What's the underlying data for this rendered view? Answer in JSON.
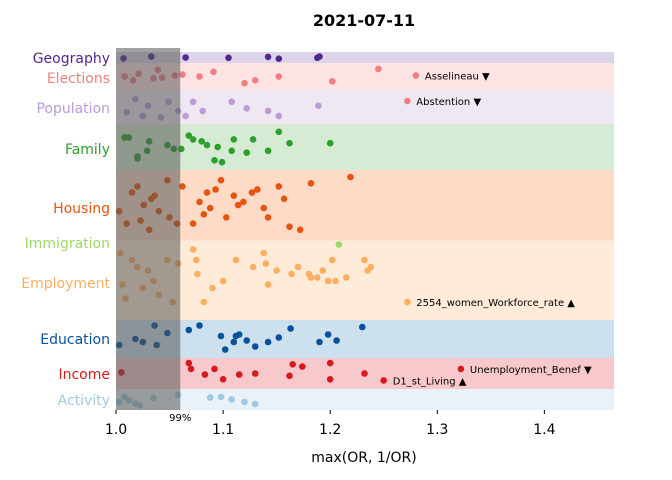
{
  "chart_data": {
    "type": "scatter",
    "title": "2021-07-11",
    "xlabel": "max(OR, 1/OR)",
    "xlim": [
      1.0,
      1.465
    ],
    "xticks": [
      "1.0",
      "1.1",
      "1.2",
      "1.3",
      "1.4"
    ],
    "xtick_values": [
      1.0,
      1.1,
      1.2,
      1.3,
      1.4
    ],
    "threshold": {
      "x": 1.06,
      "label": "99%"
    },
    "categories": [
      {
        "name": "Geography",
        "color": "#54278f",
        "band": "#dcd4e8",
        "pts": [
          [
            1.007,
            0.8
          ],
          [
            1.033,
            0.2
          ],
          [
            1.065,
            0.5
          ],
          [
            1.105,
            0.6
          ],
          [
            1.142,
            0.3
          ],
          [
            1.152,
            0.9
          ],
          [
            1.188,
            0.6
          ],
          [
            1.19,
            0.2
          ]
        ]
      },
      {
        "name": "Elections",
        "color": "#f08080",
        "band": "#fde3e3",
        "pts": [
          [
            1.008,
            0.5
          ],
          [
            1.016,
            0.7
          ],
          [
            1.021,
            0.35
          ],
          [
            1.035,
            0.6
          ],
          [
            1.039,
            0.15
          ],
          [
            1.043,
            0.55
          ],
          [
            1.055,
            0.45
          ],
          [
            1.062,
            0.4
          ],
          [
            1.078,
            0.5
          ],
          [
            1.091,
            0.25
          ],
          [
            1.12,
            0.85
          ],
          [
            1.13,
            0.7
          ],
          [
            1.152,
            0.5
          ],
          [
            1.202,
            0.75
          ],
          [
            1.245,
            0.1
          ]
        ],
        "annotations": [
          {
            "x": 1.28,
            "y": 0.45,
            "label": "Asselineau ▼"
          },
          {
            "x": 1.272,
            "y": 1.55,
            "label": "Abstention ▼"
          }
        ]
      },
      {
        "name": "Population",
        "color": "#bc9bd6",
        "band": "#efe7f2",
        "pts": [
          [
            1.01,
            0.7
          ],
          [
            1.018,
            0.2
          ],
          [
            1.025,
            0.85
          ],
          [
            1.03,
            0.45
          ],
          [
            1.042,
            0.9
          ],
          [
            1.049,
            0.3
          ],
          [
            1.058,
            0.65
          ],
          [
            1.065,
            0.85
          ],
          [
            1.072,
            0.3
          ],
          [
            1.081,
            0.65
          ],
          [
            1.108,
            0.3
          ],
          [
            1.122,
            0.55
          ],
          [
            1.142,
            0.65
          ],
          [
            1.152,
            0.85
          ],
          [
            1.189,
            0.45
          ]
        ]
      },
      {
        "name": "Family",
        "color": "#2ca02c",
        "band": "#d6ebd3",
        "pts": [
          [
            1.008,
            0.25
          ],
          [
            1.012,
            0.25
          ],
          [
            1.02,
            0.75
          ],
          [
            1.02,
            0.8
          ],
          [
            1.029,
            0.6
          ],
          [
            1.031,
            0.35
          ],
          [
            1.048,
            0.45
          ],
          [
            1.054,
            0.55
          ],
          [
            1.061,
            0.55
          ],
          [
            1.068,
            0.2
          ],
          [
            1.072,
            0.3
          ],
          [
            1.08,
            0.35
          ],
          [
            1.085,
            0.45
          ],
          [
            1.092,
            0.85
          ],
          [
            1.095,
            0.5
          ],
          [
            1.099,
            0.9
          ],
          [
            1.108,
            0.6
          ],
          [
            1.11,
            0.3
          ],
          [
            1.122,
            0.65
          ],
          [
            1.128,
            0.3
          ],
          [
            1.142,
            0.6
          ],
          [
            1.152,
            0.1
          ],
          [
            1.162,
            0.4
          ],
          [
            1.2,
            0.4
          ]
        ]
      },
      {
        "name": "Housing",
        "color": "#e6550d",
        "band": "#fddbc7",
        "pts": [
          [
            1.003,
            0.6
          ],
          [
            1.01,
            0.8
          ],
          [
            1.015,
            0.3
          ],
          [
            1.02,
            0.2
          ],
          [
            1.023,
            0.75
          ],
          [
            1.026,
            0.5
          ],
          [
            1.031,
            0.9
          ],
          [
            1.033,
            0.4
          ],
          [
            1.036,
            0.35
          ],
          [
            1.04,
            0.6
          ],
          [
            1.048,
            0.1
          ],
          [
            1.05,
            0.7
          ],
          [
            1.057,
            0.8
          ],
          [
            1.062,
            0.2
          ],
          [
            1.072,
            0.8
          ],
          [
            1.078,
            0.45
          ],
          [
            1.082,
            0.65
          ],
          [
            1.085,
            0.3
          ],
          [
            1.088,
            0.55
          ],
          [
            1.093,
            0.25
          ],
          [
            1.098,
            0.1
          ],
          [
            1.103,
            0.7
          ],
          [
            1.11,
            0.35
          ],
          [
            1.114,
            0.5
          ],
          [
            1.119,
            0.45
          ],
          [
            1.127,
            0.3
          ],
          [
            1.132,
            0.25
          ],
          [
            1.138,
            0.55
          ],
          [
            1.142,
            0.7
          ],
          [
            1.152,
            0.2
          ],
          [
            1.157,
            0.4
          ],
          [
            1.162,
            0.85
          ],
          [
            1.172,
            0.9
          ],
          [
            1.182,
            0.15
          ],
          [
            1.219,
            0.05
          ]
        ]
      },
      {
        "name": "Immigration",
        "color": "#a1d76a",
        "band": "#fde6d8",
        "pts": [
          [
            1.208,
            0.5
          ]
        ]
      },
      {
        "name": "Employment",
        "color": "#fdae61",
        "band": "#feecd9",
        "pts": [
          [
            1.004,
            0.1
          ],
          [
            1.006,
            0.55
          ],
          [
            1.009,
            0.75
          ],
          [
            1.015,
            0.2
          ],
          [
            1.02,
            0.3
          ],
          [
            1.025,
            0.6
          ],
          [
            1.03,
            0.35
          ],
          [
            1.035,
            0.5
          ],
          [
            1.04,
            0.7
          ],
          [
            1.048,
            0.2
          ],
          [
            1.053,
            0.8
          ],
          [
            1.058,
            0.25
          ],
          [
            1.072,
            0.05
          ],
          [
            1.075,
            0.2
          ],
          [
            1.076,
            0.4
          ],
          [
            1.082,
            0.8
          ],
          [
            1.09,
            0.6
          ],
          [
            1.1,
            0.5
          ],
          [
            1.112,
            0.2
          ],
          [
            1.128,
            0.3
          ],
          [
            1.138,
            0.1
          ],
          [
            1.14,
            0.25
          ],
          [
            1.142,
            0.55
          ],
          [
            1.15,
            0.35
          ],
          [
            1.164,
            0.4
          ],
          [
            1.17,
            0.3
          ],
          [
            1.18,
            0.4
          ],
          [
            1.182,
            0.45
          ],
          [
            1.188,
            0.45
          ],
          [
            1.193,
            0.35
          ],
          [
            1.198,
            0.5
          ],
          [
            1.202,
            0.2
          ],
          [
            1.205,
            0.5
          ],
          [
            1.215,
            0.45
          ],
          [
            1.232,
            0.2
          ],
          [
            1.235,
            0.35
          ],
          [
            1.238,
            0.3
          ]
        ],
        "annotations": [
          {
            "x": 1.272,
            "y": 0.8,
            "label": "2554_women_Workforce_rate ▲"
          }
        ]
      },
      {
        "name": "Education",
        "color": "#08519c",
        "band": "#cde0ee",
        "pts": [
          [
            1.003,
            0.7
          ],
          [
            1.018,
            0.5
          ],
          [
            1.025,
            0.6
          ],
          [
            1.036,
            0.05
          ],
          [
            1.038,
            0.7
          ],
          [
            1.048,
            0.3
          ],
          [
            1.068,
            0.2
          ],
          [
            1.078,
            0.05
          ],
          [
            1.098,
            0.4
          ],
          [
            1.102,
            0.85
          ],
          [
            1.11,
            0.6
          ],
          [
            1.112,
            0.4
          ],
          [
            1.115,
            0.35
          ],
          [
            1.122,
            0.55
          ],
          [
            1.13,
            0.75
          ],
          [
            1.142,
            0.6
          ],
          [
            1.152,
            0.45
          ],
          [
            1.163,
            0.15
          ],
          [
            1.19,
            0.6
          ],
          [
            1.198,
            0.35
          ],
          [
            1.206,
            0.55
          ],
          [
            1.23,
            0.1
          ]
        ]
      },
      {
        "name": "Income",
        "color": "#d7191c",
        "band": "#f7c8cc",
        "pts": [
          [
            1.005,
            0.45
          ],
          [
            1.068,
            0.05
          ],
          [
            1.07,
            0.3
          ],
          [
            1.083,
            0.55
          ],
          [
            1.092,
            0.3
          ],
          [
            1.1,
            0.75
          ],
          [
            1.115,
            0.55
          ],
          [
            1.13,
            0.5
          ],
          [
            1.162,
            0.6
          ],
          [
            1.165,
            0.1
          ],
          [
            1.174,
            0.2
          ],
          [
            1.2,
            0.75
          ],
          [
            1.2,
            0.05
          ],
          [
            1.232,
            0.5
          ]
        ],
        "annotations": [
          {
            "x": 1.322,
            "y": 0.3,
            "label": "Unemployment_Benef ▼"
          },
          {
            "x": 1.25,
            "y": 0.8,
            "label": "D1_st_Living ▲"
          }
        ]
      },
      {
        "name": "Activity",
        "color": "#9ecae1",
        "band": "#e9f2f8",
        "pts": [
          [
            1.003,
            0.7
          ],
          [
            1.008,
            0.3
          ],
          [
            1.012,
            0.55
          ],
          [
            1.018,
            0.8
          ],
          [
            1.022,
            0.95
          ],
          [
            1.035,
            0.4
          ],
          [
            1.058,
            0.15
          ],
          [
            1.088,
            0.35
          ],
          [
            1.098,
            0.3
          ],
          [
            1.108,
            0.5
          ],
          [
            1.12,
            0.7
          ],
          [
            1.13,
            0.85
          ]
        ]
      }
    ]
  }
}
